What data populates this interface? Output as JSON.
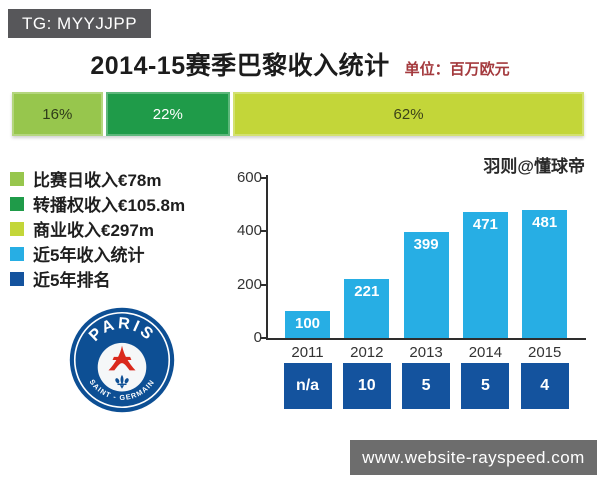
{
  "page": {
    "tg_badge": "TG: MYYJJPP",
    "watermark": "www.website-rayspeed.com"
  },
  "header": {
    "title": "2014-15赛季巴黎收入统计",
    "unit_label": "单位：百万欧元"
  },
  "author_credit": "羽则@懂球帝",
  "legend": {
    "items": [
      {
        "label": "比赛日收入€78m",
        "color": "#97c64d"
      },
      {
        "label": "转播权收入€105.8m",
        "color": "#1f9b49"
      },
      {
        "label": "商业收入€297m",
        "color": "#c3d639"
      },
      {
        "label": "近5年收入统计",
        "color": "#27aee4"
      },
      {
        "label": "近5年排名",
        "color": "#14539e"
      }
    ]
  },
  "logo": {
    "club": "Paris Saint-Germain",
    "top_text": "PARIS",
    "bottom_text": "SAINT - GERMAIN"
  },
  "colors": {
    "badge_gray": "#57575a",
    "watermark_gray": "#6d6d6d",
    "unit_label_red": "#a43a3e",
    "axis": "#2e2e2e",
    "bar_blue": "#27aee4",
    "rank_navy": "#14539e",
    "logo_blue": "#0d4f94",
    "logo_red": "#da291c"
  },
  "chart_data": [
    {
      "type": "bar",
      "subtype": "stacked-horizontal-percentage",
      "title": "2014-15赛季巴黎收入统计",
      "unit": "百万欧元",
      "segments": [
        {
          "label": "比赛日收入",
          "value": 78,
          "value_label": "€78m",
          "percent": 16,
          "percent_label": "16%",
          "color": "#97c64d",
          "text_color": "#2f3c1a"
        },
        {
          "label": "转播权收入",
          "value": 105.8,
          "value_label": "€105.8m",
          "percent": 22,
          "percent_label": "22%",
          "color": "#1f9b49",
          "text_color": "#ffffff"
        },
        {
          "label": "商业收入",
          "value": 297,
          "value_label": "€297m",
          "percent": 62,
          "percent_label": "62%",
          "color": "#c3d639",
          "text_color": "#3c4218"
        }
      ]
    },
    {
      "type": "bar",
      "title": "近5年收入统计",
      "categories": [
        "2011",
        "2012",
        "2013",
        "2014",
        "2015"
      ],
      "values": [
        100,
        221,
        399,
        471,
        481
      ],
      "rankings": [
        "n/a",
        "10",
        "5",
        "5",
        "4"
      ],
      "xlabel": "",
      "ylabel": "",
      "ylim": [
        0,
        600
      ],
      "yticks": [
        0,
        200,
        400,
        600
      ],
      "grid": false,
      "legend_position": "left",
      "bar_color": "#27aee4",
      "rank_box_color": "#14539e"
    }
  ]
}
